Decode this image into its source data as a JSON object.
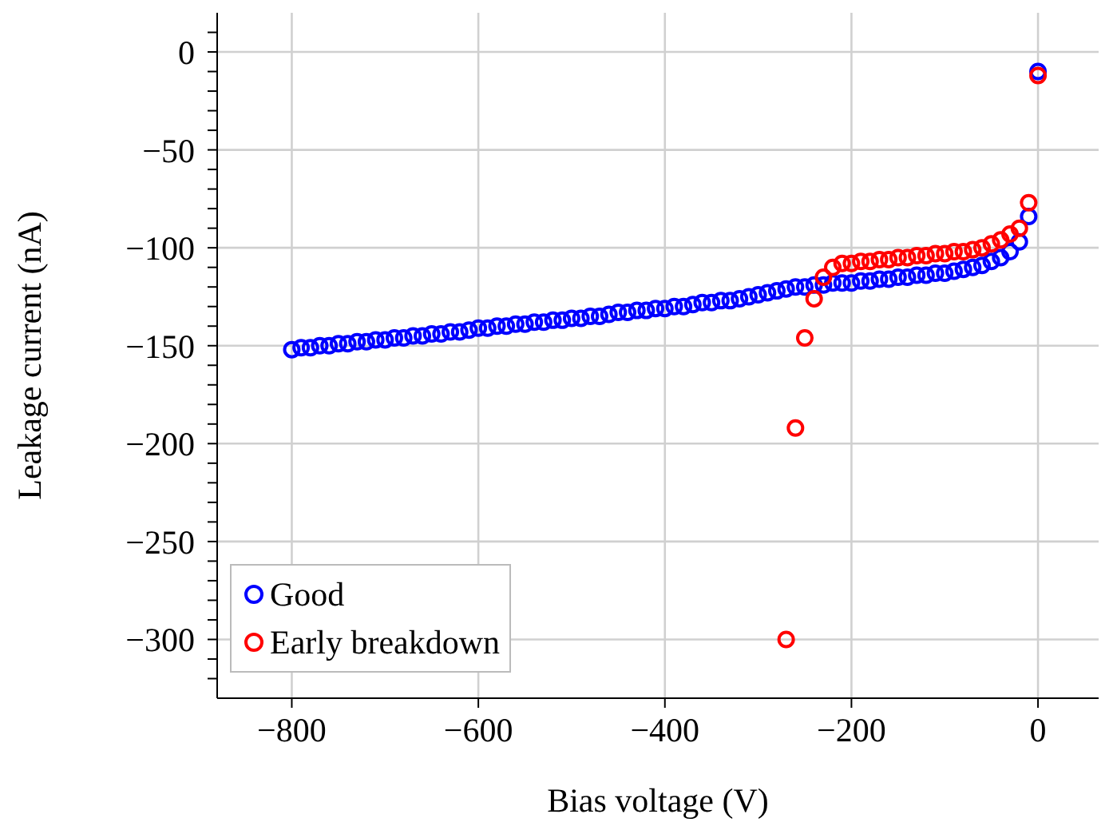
{
  "chart_data": {
    "type": "scatter",
    "xlabel": "Bias voltage (V)",
    "ylabel": "Leakage current (nA)",
    "xlim": [
      -880,
      65
    ],
    "ylim": [
      -330,
      20
    ],
    "xticks": [
      -800,
      -600,
      -400,
      -200,
      0
    ],
    "yticks": [
      {
        "value": -320,
        "label": null
      },
      {
        "value": -310,
        "label": null
      },
      -300,
      {
        "value": -290,
        "label": null
      },
      {
        "value": -280,
        "label": null
      },
      {
        "value": -270,
        "label": null
      },
      {
        "value": -260,
        "label": null
      },
      -250,
      {
        "value": -240,
        "label": null
      },
      {
        "value": -230,
        "label": null
      },
      {
        "value": -220,
        "label": null
      },
      {
        "value": -210,
        "label": null
      },
      -200,
      {
        "value": -190,
        "label": null
      },
      {
        "value": -180,
        "label": null
      },
      {
        "value": -170,
        "label": null
      },
      {
        "value": -160,
        "label": null
      },
      -150,
      {
        "value": -140,
        "label": null
      },
      {
        "value": -130,
        "label": null
      },
      {
        "value": -120,
        "label": null
      },
      {
        "value": -110,
        "label": null
      },
      -100,
      {
        "value": -90,
        "label": null
      },
      {
        "value": -80,
        "label": null
      },
      {
        "value": -70,
        "label": null
      },
      {
        "value": -60,
        "label": null
      },
      -50,
      {
        "value": -40,
        "label": null
      },
      {
        "value": -30,
        "label": null
      },
      {
        "value": -20,
        "label": null
      },
      {
        "value": -10,
        "label": null
      },
      0,
      {
        "value": 10,
        "label": null
      }
    ],
    "grid": true,
    "legend": "bottom left",
    "marker": "circle",
    "series": [
      {
        "name": "Good",
        "color": "#0000ff",
        "x": [
          -800,
          -790,
          -780,
          -770,
          -760,
          -750,
          -740,
          -730,
          -720,
          -710,
          -700,
          -690,
          -680,
          -670,
          -660,
          -650,
          -640,
          -630,
          -620,
          -610,
          -600,
          -590,
          -580,
          -570,
          -560,
          -550,
          -540,
          -530,
          -520,
          -510,
          -500,
          -490,
          -480,
          -470,
          -460,
          -450,
          -440,
          -430,
          -420,
          -410,
          -400,
          -390,
          -380,
          -370,
          -360,
          -350,
          -340,
          -330,
          -320,
          -310,
          -300,
          -290,
          -280,
          -270,
          -260,
          -250,
          -240,
          -230,
          -220,
          -210,
          -200,
          -190,
          -180,
          -170,
          -160,
          -150,
          -140,
          -130,
          -120,
          -110,
          -100,
          -90,
          -80,
          -70,
          -60,
          -50,
          -40,
          -30,
          -20,
          -10,
          0
        ],
        "values": [
          -152,
          -151,
          -151,
          -150,
          -150,
          -149,
          -149,
          -148,
          -148,
          -147,
          -147,
          -146,
          -146,
          -145,
          -145,
          -144,
          -144,
          -143,
          -143,
          -142,
          -141,
          -141,
          -140,
          -140,
          -139,
          -139,
          -138,
          -138,
          -137,
          -137,
          -136,
          -136,
          -135,
          -135,
          -134,
          -133,
          -133,
          -132,
          -132,
          -131,
          -131,
          -130,
          -130,
          -129,
          -128,
          -128,
          -127,
          -127,
          -126,
          -125,
          -124,
          -123,
          -122,
          -121,
          -120,
          -120,
          -119,
          -119,
          -118,
          -118,
          -118,
          -117,
          -117,
          -116,
          -116,
          -115,
          -115,
          -114,
          -114,
          -113,
          -113,
          -112,
          -111,
          -110,
          -109,
          -107,
          -105,
          -102,
          -97,
          -84,
          -10
        ]
      },
      {
        "name": "Early breakdown",
        "color": "#ff0000",
        "x": [
          -270,
          -260,
          -250,
          -240,
          -230,
          -220,
          -210,
          -200,
          -190,
          -180,
          -170,
          -160,
          -150,
          -140,
          -130,
          -120,
          -110,
          -100,
          -90,
          -80,
          -70,
          -60,
          -50,
          -40,
          -30,
          -20,
          -10,
          0
        ],
        "values": [
          -300,
          -192,
          -146,
          -126,
          -115,
          -110,
          -108,
          -108,
          -107,
          -107,
          -106,
          -106,
          -105,
          -105,
          -104,
          -104,
          -103,
          -103,
          -102,
          -102,
          -101,
          -100,
          -98,
          -96,
          -93,
          -90,
          -77,
          -12
        ]
      }
    ]
  }
}
